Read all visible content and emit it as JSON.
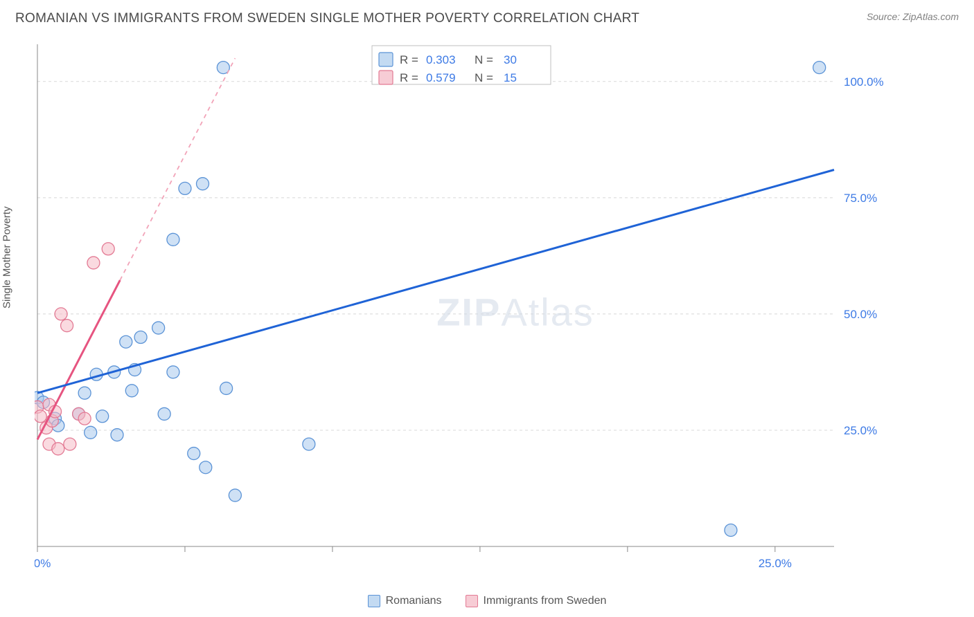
{
  "title": "ROMANIAN VS IMMIGRANTS FROM SWEDEN SINGLE MOTHER POVERTY CORRELATION CHART",
  "source": "Source: ZipAtlas.com",
  "ylabel": "Single Mother Poverty",
  "watermark": {
    "bold": "ZIP",
    "light": "Atlas"
  },
  "chart": {
    "type": "scatter",
    "xlim": [
      0,
      27.0
    ],
    "ylim": [
      0,
      108.0
    ],
    "xticks": [
      0.0,
      5.0,
      10.0,
      15.0,
      20.0,
      25.0
    ],
    "xtick_labels": [
      "0.0%",
      "",
      "",
      "",
      "",
      "25.0%"
    ],
    "yticks": [
      25.0,
      50.0,
      75.0,
      100.0
    ],
    "ytick_labels": [
      "25.0%",
      "50.0%",
      "75.0%",
      "100.0%"
    ],
    "grid_color": "#d8d8d8",
    "marker_radius": 9,
    "series": [
      {
        "name": "Romanians",
        "color_fill": "#a8c9ed",
        "color_stroke": "#5b93d6",
        "R": "0.303",
        "N": "30",
        "trend": {
          "x1": 0.0,
          "y1": 33.0,
          "x2": 27.0,
          "y2": 81.0,
          "solid_until_x": 27.0,
          "color": "#1f63d6"
        },
        "points": [
          [
            0.0,
            32.0
          ],
          [
            0.2,
            31.0
          ],
          [
            0.6,
            27.5
          ],
          [
            0.7,
            26.0
          ],
          [
            1.4,
            28.5
          ],
          [
            1.6,
            33.0
          ],
          [
            1.8,
            24.5
          ],
          [
            2.0,
            37.0
          ],
          [
            2.2,
            28.0
          ],
          [
            2.6,
            37.5
          ],
          [
            2.7,
            24.0
          ],
          [
            3.0,
            44.0
          ],
          [
            3.2,
            33.5
          ],
          [
            3.3,
            38.0
          ],
          [
            3.5,
            45.0
          ],
          [
            4.1,
            47.0
          ],
          [
            4.3,
            28.5
          ],
          [
            4.6,
            66.0
          ],
          [
            4.6,
            37.5
          ],
          [
            5.0,
            77.0
          ],
          [
            5.3,
            20.0
          ],
          [
            5.6,
            78.0
          ],
          [
            5.7,
            17.0
          ],
          [
            6.3,
            103.0
          ],
          [
            6.4,
            34.0
          ],
          [
            6.7,
            11.0
          ],
          [
            9.2,
            22.0
          ],
          [
            14.5,
            103.0
          ],
          [
            23.5,
            3.5
          ],
          [
            26.5,
            103.0
          ]
        ]
      },
      {
        "name": "Immigrants from Sweden",
        "color_fill": "#f5bcc7",
        "color_stroke": "#e37a94",
        "R": "0.579",
        "N": "15",
        "trend": {
          "x1": 0.0,
          "y1": 23.0,
          "x2": 6.7,
          "y2": 105.0,
          "solid_until_x": 2.8,
          "color": "#e65480"
        },
        "points": [
          [
            0.0,
            30.0
          ],
          [
            0.1,
            28.0
          ],
          [
            0.3,
            25.5
          ],
          [
            0.4,
            30.5
          ],
          [
            0.4,
            22.0
          ],
          [
            0.5,
            27.0
          ],
          [
            0.6,
            29.0
          ],
          [
            0.7,
            21.0
          ],
          [
            0.8,
            50.0
          ],
          [
            1.0,
            47.5
          ],
          [
            1.1,
            22.0
          ],
          [
            1.4,
            28.5
          ],
          [
            1.6,
            27.5
          ],
          [
            1.9,
            61.0
          ],
          [
            2.4,
            64.0
          ]
        ]
      }
    ]
  },
  "topLegend": {
    "rows": [
      {
        "swatch": "blue",
        "R_label": "R =",
        "R": "0.303",
        "N_label": "N =",
        "N": "30"
      },
      {
        "swatch": "pink",
        "R_label": "R =",
        "R": "0.579",
        "N_label": "N =",
        "N": "15"
      }
    ]
  },
  "bottomLegend": [
    {
      "swatch": "blue",
      "label": "Romanians"
    },
    {
      "swatch": "pink",
      "label": "Immigrants from Sweden"
    }
  ],
  "colors": {
    "blue_fill": "#a8c9ed",
    "blue_stroke": "#5b93d6",
    "blue_line": "#1f63d6",
    "pink_fill": "#f5bcc7",
    "pink_stroke": "#e37a94",
    "pink_line": "#e65480",
    "tick_label": "#3d7ae5",
    "grid": "#d8d8d8",
    "axis": "#888888",
    "bg": "#ffffff"
  }
}
